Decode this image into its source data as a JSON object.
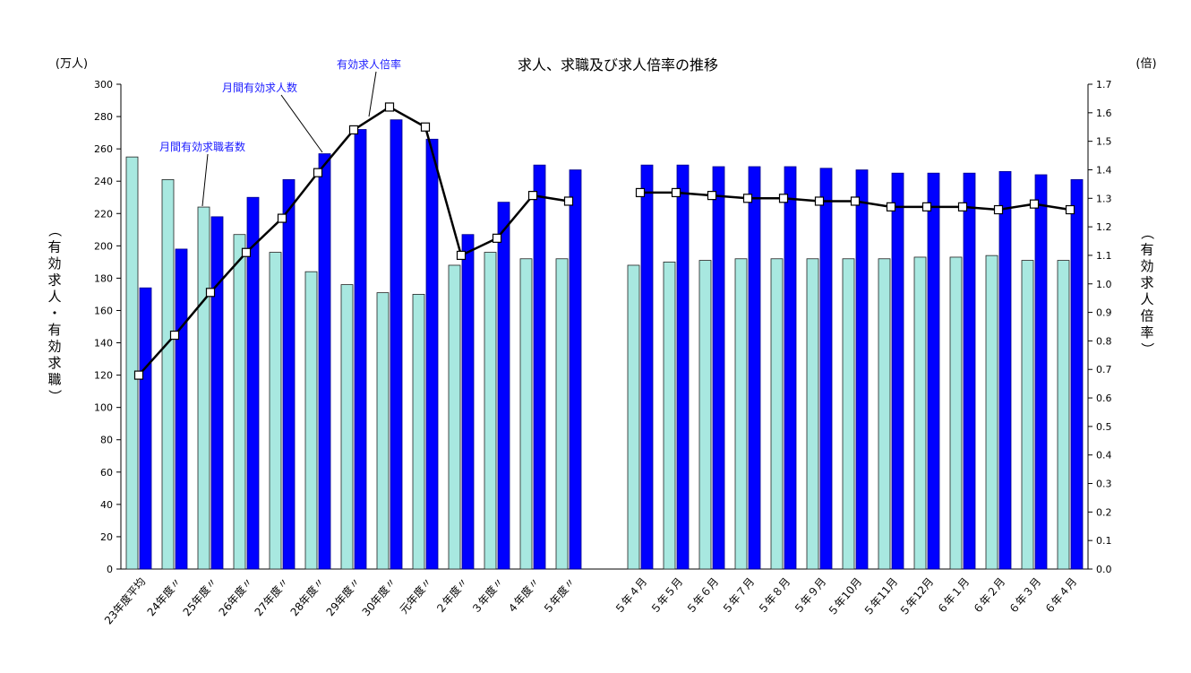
{
  "chart_data": {
    "type": "bar",
    "title": "求人、求職及び求人倍率の推移",
    "left_unit": "(万人)",
    "right_unit": "(倍)",
    "ylabel": "（有効求人・有効求職）",
    "y2label": "（有効求人倍率）",
    "ylim": [
      0,
      300
    ],
    "y2lim": [
      0.0,
      1.7
    ],
    "yticks": [
      "0",
      "20",
      "40",
      "60",
      "80",
      "100",
      "120",
      "140",
      "160",
      "180",
      "200",
      "220",
      "240",
      "260",
      "280",
      "300"
    ],
    "y2ticks": [
      "0.0",
      "0.1",
      "0.2",
      "0.3",
      "0.4",
      "0.5",
      "0.6",
      "0.7",
      "0.8",
      "0.9",
      "1.0",
      "1.1",
      "1.2",
      "1.3",
      "1.4",
      "1.5",
      "1.6",
      "1.7"
    ],
    "categories": [
      "23年度平均",
      "24年度〃",
      "25年度〃",
      "26年度〃",
      "27年度〃",
      "28年度〃",
      "29年度〃",
      "30年度〃",
      "元年度〃",
      "２年度〃",
      "３年度〃",
      "４年度〃",
      "５年度〃",
      "５年４月",
      "５年５月",
      "５年６月",
      "５年７月",
      "５年８月",
      "５年９月",
      "５年10月",
      "５年11月",
      "５年12月",
      "６年１月",
      "６年２月",
      "６年３月",
      "６年４月"
    ],
    "gap_after_index": 12,
    "annotations": {
      "jobseekers": "月間有効求職者数",
      "openings": "月間有効求人数",
      "ratio": "有効求人倍率"
    },
    "series": [
      {
        "name": "月間有効求職者数",
        "axis": "left",
        "type": "bar",
        "color": "#a8e8e0",
        "values": [
          255,
          241,
          224,
          207,
          196,
          184,
          176,
          171,
          170,
          188,
          196,
          192,
          192,
          188,
          190,
          191,
          192,
          192,
          192,
          192,
          192,
          193,
          193,
          194,
          191,
          191
        ]
      },
      {
        "name": "月間有効求人数",
        "axis": "left",
        "type": "bar",
        "color": "#0000ff",
        "values": [
          174,
          198,
          218,
          230,
          241,
          257,
          272,
          278,
          266,
          207,
          227,
          250,
          247,
          250,
          250,
          249,
          249,
          249,
          248,
          247,
          245,
          245,
          245,
          246,
          244,
          241
        ]
      },
      {
        "name": "有効求人倍率",
        "axis": "right",
        "type": "line",
        "color": "#000000",
        "values": [
          0.68,
          0.82,
          0.97,
          1.11,
          1.23,
          1.39,
          1.54,
          1.62,
          1.55,
          1.1,
          1.16,
          1.31,
          1.29,
          1.32,
          1.32,
          1.31,
          1.3,
          1.3,
          1.29,
          1.29,
          1.27,
          1.27,
          1.27,
          1.26,
          1.28,
          1.26
        ]
      }
    ]
  }
}
